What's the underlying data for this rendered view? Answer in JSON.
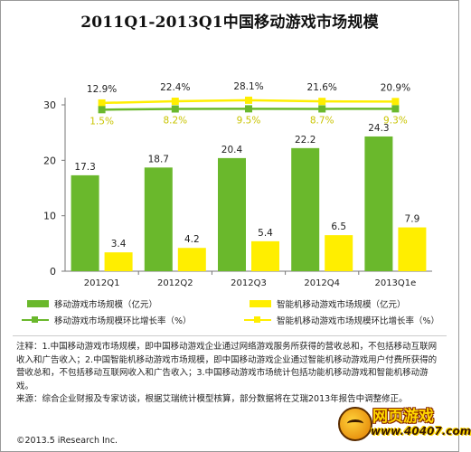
{
  "chart_data": {
    "type": "bar",
    "title": "2011Q1-2013Q1中国移动游戏市场规模",
    "categories": [
      "2012Q1",
      "2012Q2",
      "2012Q3",
      "2012Q4",
      "2013Q1e"
    ],
    "ylim": [
      0,
      30
    ],
    "yticks": [
      "0",
      "10",
      "20",
      "30"
    ],
    "grid": false,
    "series": [
      {
        "name": "移动游戏市场规模（亿元）",
        "type": "bar",
        "color": "#6ab82c",
        "values": [
          17.3,
          18.7,
          20.4,
          22.2,
          24.3
        ],
        "labels": [
          "17.3",
          "18.7",
          "20.4",
          "22.2",
          "24.3"
        ]
      },
      {
        "name": "智能机移动游戏市场规模（亿元）",
        "type": "bar",
        "color": "#ffee00",
        "values": [
          3.4,
          4.2,
          5.4,
          6.5,
          7.9
        ],
        "labels": [
          "3.4",
          "4.2",
          "5.4",
          "6.5",
          "7.9"
        ]
      },
      {
        "name": "移动游戏市场规模环比增长率（%）",
        "type": "line",
        "color": "#6ab82c",
        "values": [
          1.5,
          8.2,
          9.5,
          8.7,
          9.3
        ],
        "labels": [
          "1.5%",
          "8.2%",
          "9.5%",
          "8.7%",
          "9.3%"
        ]
      },
      {
        "name": "智能机移动游戏市场规模环比增长率（%）",
        "type": "line",
        "color": "#ffee00",
        "values": [
          12.9,
          22.4,
          28.1,
          21.6,
          20.9
        ],
        "labels": [
          "12.9%",
          "22.4%",
          "28.1%",
          "21.6%",
          "20.9%"
        ]
      }
    ],
    "legend_placement": "bottom"
  },
  "notes": [
    "注释：1.中国移动游戏市场规模，即中国移动游戏企业通过网络游戏服务所获得的营收总和，不包括移动互联网收入和广告收入；2.中国智能机移动游戏市场规模，即中国移动游戏企业通过智能机移动游戏用户付费所获得的营收总和，不包括移动互联网收入和广告收入；3.中国移动游戏市场统计包括功能机移动游戏和智能机移动游戏。",
    "来源：综合企业财报及专家访谈，根据艾瑞统计模型核算，部分数据将在艾瑞2013年报告中调整修正。"
  ],
  "copyright": "©2013.5 iResearch Inc.",
  "watermark": {
    "cn": "网页游戏",
    "url": "www.40407.com"
  }
}
